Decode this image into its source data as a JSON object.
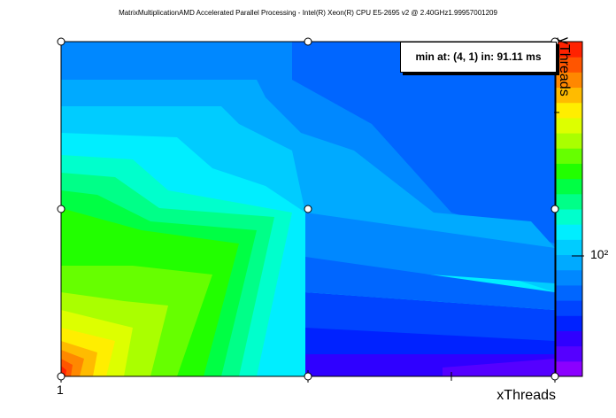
{
  "header": {
    "title": "MatrixMultiplicationAMD Accelerated Parallel Processing - Intel(R) Xeon(R) CPU E5-2695 v2 @ 2.40GHz1.99957001209"
  },
  "annotation": {
    "min_label": "min at: (4, 1) in: 91.11 ms"
  },
  "chart_data": {
    "type": "heatmap",
    "title": "MatrixMultiplicationAMD Accelerated Parallel Processing - Intel(R) Xeon(R) CPU E5-2695 v2 @ 2.40GHz1.99957001209",
    "xlabel": "xThreads",
    "ylabel": "yThreads",
    "x_ticks": [
      "1"
    ],
    "z_ticks": [
      "10²"
    ],
    "z_scale": "log",
    "color_palette": [
      "#8b00ff",
      "#5500ff",
      "#2f00ff",
      "#0022ff",
      "#0044ff",
      "#0066ff",
      "#0088ff",
      "#00aaff",
      "#00ccff",
      "#00eeff",
      "#00ffcc",
      "#00ff88",
      "#00ff44",
      "#22ff00",
      "#66ff00",
      "#aaff00",
      "#ddff00",
      "#ffee00",
      "#ffbb00",
      "#ff8800",
      "#ff5500",
      "#ff2200"
    ],
    "grid_points": [
      [
        1,
        1
      ],
      [
        1,
        2
      ],
      [
        1,
        4
      ],
      [
        2,
        1
      ],
      [
        2,
        2
      ],
      [
        2,
        4
      ],
      [
        4,
        1
      ],
      [
        4,
        2
      ],
      [
        4,
        4
      ]
    ],
    "minimum": {
      "x": 4,
      "y": 1,
      "value": 91.11,
      "unit": "ms"
    },
    "legend": "right"
  }
}
